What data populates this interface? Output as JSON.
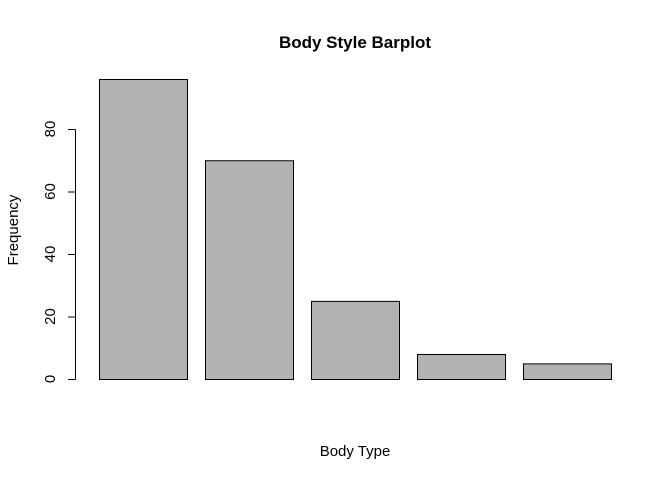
{
  "chart_data": {
    "type": "bar",
    "title": "Body Style Barplot",
    "xlabel": "Body Type",
    "ylabel": "Frequency",
    "categories": [
      "",
      "",
      "",
      "",
      ""
    ],
    "values": [
      96,
      70,
      25,
      8,
      5
    ],
    "ylim": [
      0,
      96
    ],
    "yticks": [
      "0",
      "20",
      "40",
      "60",
      "80"
    ],
    "ytick_values": [
      0,
      20,
      40,
      60,
      80
    ],
    "grid": false,
    "legend": "none",
    "colors": {
      "bar_fill": "#b2b2b2",
      "bar_stroke": "#000000",
      "axis": "#000000",
      "background": "#ffffff"
    }
  }
}
